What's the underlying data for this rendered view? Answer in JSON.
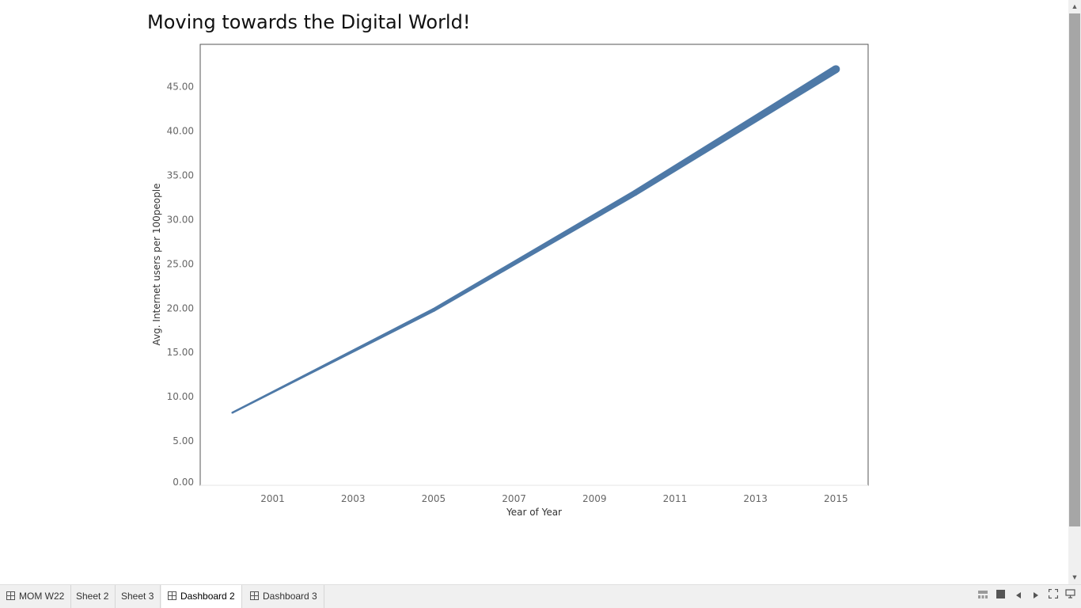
{
  "dashboard": {
    "title": "Moving towards the Digital World!"
  },
  "chart_data": {
    "type": "line",
    "title": "Moving towards the Digital World!",
    "xlabel": "Year of Year",
    "ylabel": "Avg. Internet users per 100people",
    "x": [
      2000,
      2005,
      2010,
      2015
    ],
    "series": [
      {
        "values": [
          8.2,
          19.8,
          33.0,
          47.0
        ],
        "color": "#4e79a7"
      }
    ],
    "x_ticks": [
      "2001",
      "2003",
      "2005",
      "2007",
      "2009",
      "2011",
      "2013",
      "2015"
    ],
    "x_tick_values": [
      2001,
      2003,
      2005,
      2007,
      2009,
      2011,
      2013,
      2015
    ],
    "y_ticks": [
      "0.00",
      "5.00",
      "10.00",
      "15.00",
      "20.00",
      "25.00",
      "30.00",
      "35.00",
      "40.00",
      "45.00"
    ],
    "y_tick_values": [
      0,
      5,
      10,
      15,
      20,
      25,
      30,
      35,
      40,
      45
    ],
    "xlim": [
      1999.2,
      2015.8
    ],
    "ylim": [
      0,
      49.8
    ],
    "grid": false,
    "line_width_grows_with_value": true
  },
  "tabs": [
    {
      "label": "MOM W22",
      "icon": "sheet-grid-icon",
      "active": false
    },
    {
      "label": "Sheet 2",
      "icon": "",
      "active": false
    },
    {
      "label": "Sheet 3",
      "icon": "",
      "active": false
    },
    {
      "label": "Dashboard 2",
      "icon": "dashboard-grid-icon",
      "active": true
    },
    {
      "label": "Dashboard 3",
      "icon": "dashboard-grid-icon",
      "active": false
    }
  ],
  "toolbar": {
    "icons": [
      "show-filmstrip-icon",
      "show-tabs-icon",
      "previous-sheet-icon",
      "next-sheet-icon",
      "full-screen-icon",
      "presentation-mode-icon"
    ]
  },
  "scrollbar": {
    "up_icon": "scroll-up-arrow-icon",
    "down_icon": "scroll-down-arrow-icon"
  }
}
